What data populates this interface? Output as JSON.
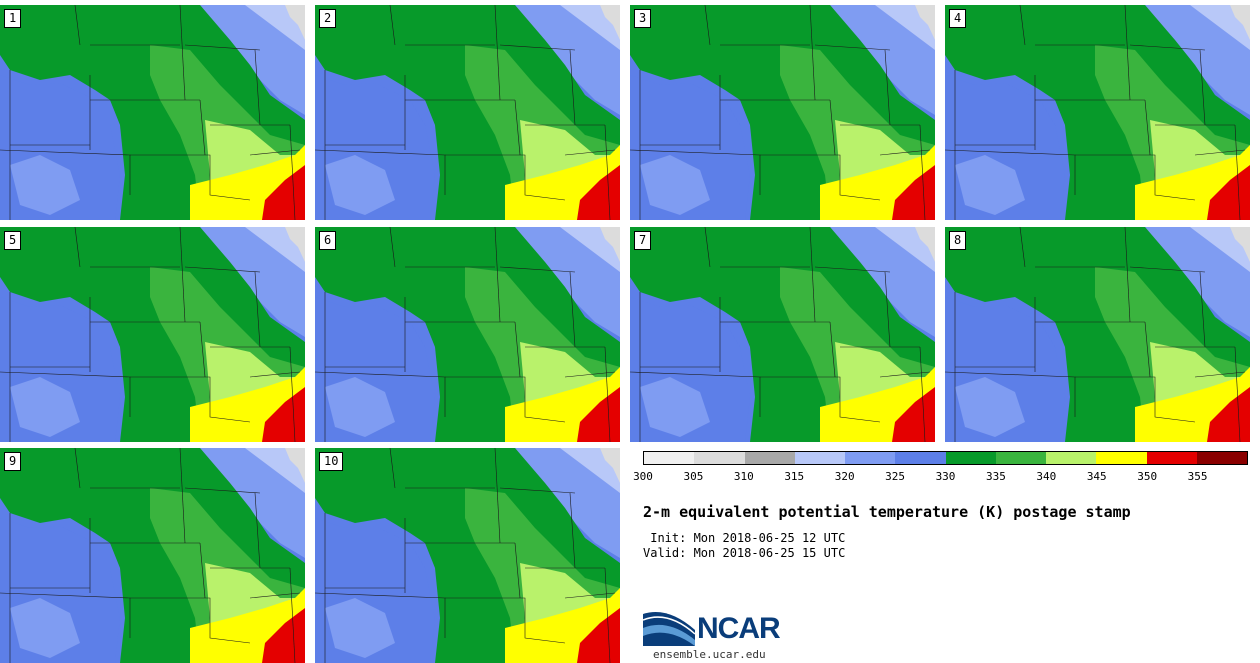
{
  "stamps": [
    {
      "label": "1"
    },
    {
      "label": "2"
    },
    {
      "label": "3"
    },
    {
      "label": "4"
    },
    {
      "label": "5"
    },
    {
      "label": "6"
    },
    {
      "label": "7"
    },
    {
      "label": "8"
    },
    {
      "label": "9"
    },
    {
      "label": "10"
    }
  ],
  "colorbar": {
    "colors": [
      "#f0f0f0",
      "#dcdcdc",
      "#a8a8a8",
      "#b8c8f8",
      "#7f9cf2",
      "#5d7fe8",
      "#079a2a",
      "#3ab43e",
      "#b9f26b",
      "#ffff00",
      "#e40000",
      "#8a0000"
    ],
    "tick_labels": [
      "300",
      "305",
      "310",
      "315",
      "320",
      "325",
      "330",
      "335",
      "340",
      "345",
      "350",
      "355"
    ]
  },
  "title": "2-m equivalent potential temperature (K) postage stamp",
  "init_line": " Init: Mon 2018-06-25 12 UTC",
  "valid_line": "Valid: Mon 2018-06-25 15 UTC",
  "logo": {
    "text": "NCAR",
    "site": "ensemble.ucar.edu",
    "color": "#0a3d7a"
  }
}
